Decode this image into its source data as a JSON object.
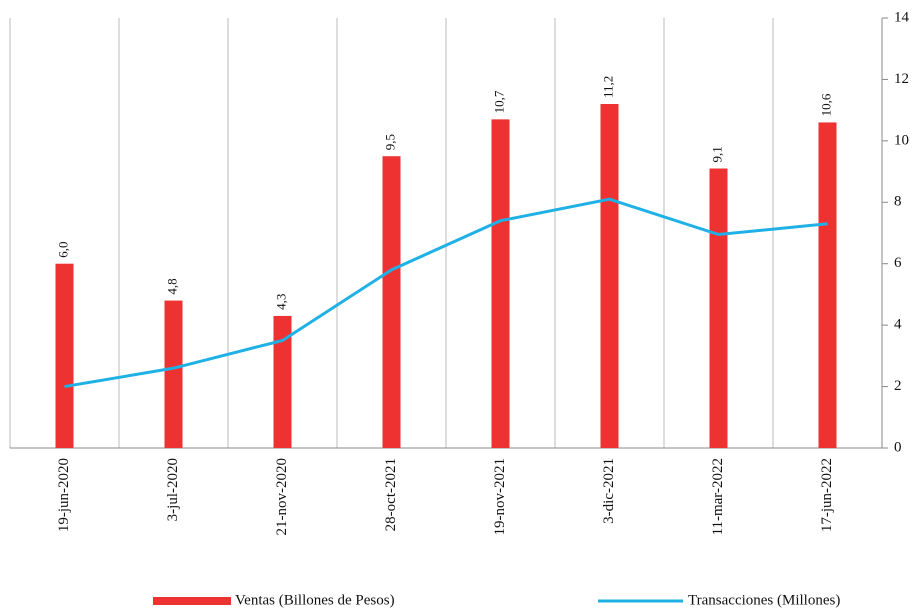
{
  "chart_data": {
    "type": "bar_line",
    "categories": [
      "19-jun-2020",
      "3-jul-2020",
      "21-nov-2020",
      "28-oct-2021",
      "19-nov-2021",
      "3-dic-2021",
      "11-mar-2022",
      "17-jun-2022"
    ],
    "series": [
      {
        "name": "Ventas (Billones de Pesos)",
        "type": "bar",
        "color": "#ee3231",
        "values": [
          6.0,
          4.8,
          4.3,
          9.5,
          10.7,
          11.2,
          9.1,
          10.6
        ],
        "value_labels": [
          "6,0",
          "4,8",
          "4,3",
          "9,5",
          "10,7",
          "11,2",
          "9,1",
          "10,6"
        ]
      },
      {
        "name": "Transacciones (Millones)",
        "type": "line",
        "color": "#1fb1e6",
        "values": [
          2.0,
          2.6,
          3.5,
          5.8,
          7.4,
          8.1,
          6.95,
          7.3
        ]
      }
    ],
    "ylim": [
      0,
      14
    ],
    "yticks": [
      0,
      2,
      4,
      6,
      8,
      10,
      12,
      14
    ],
    "grid": true
  }
}
